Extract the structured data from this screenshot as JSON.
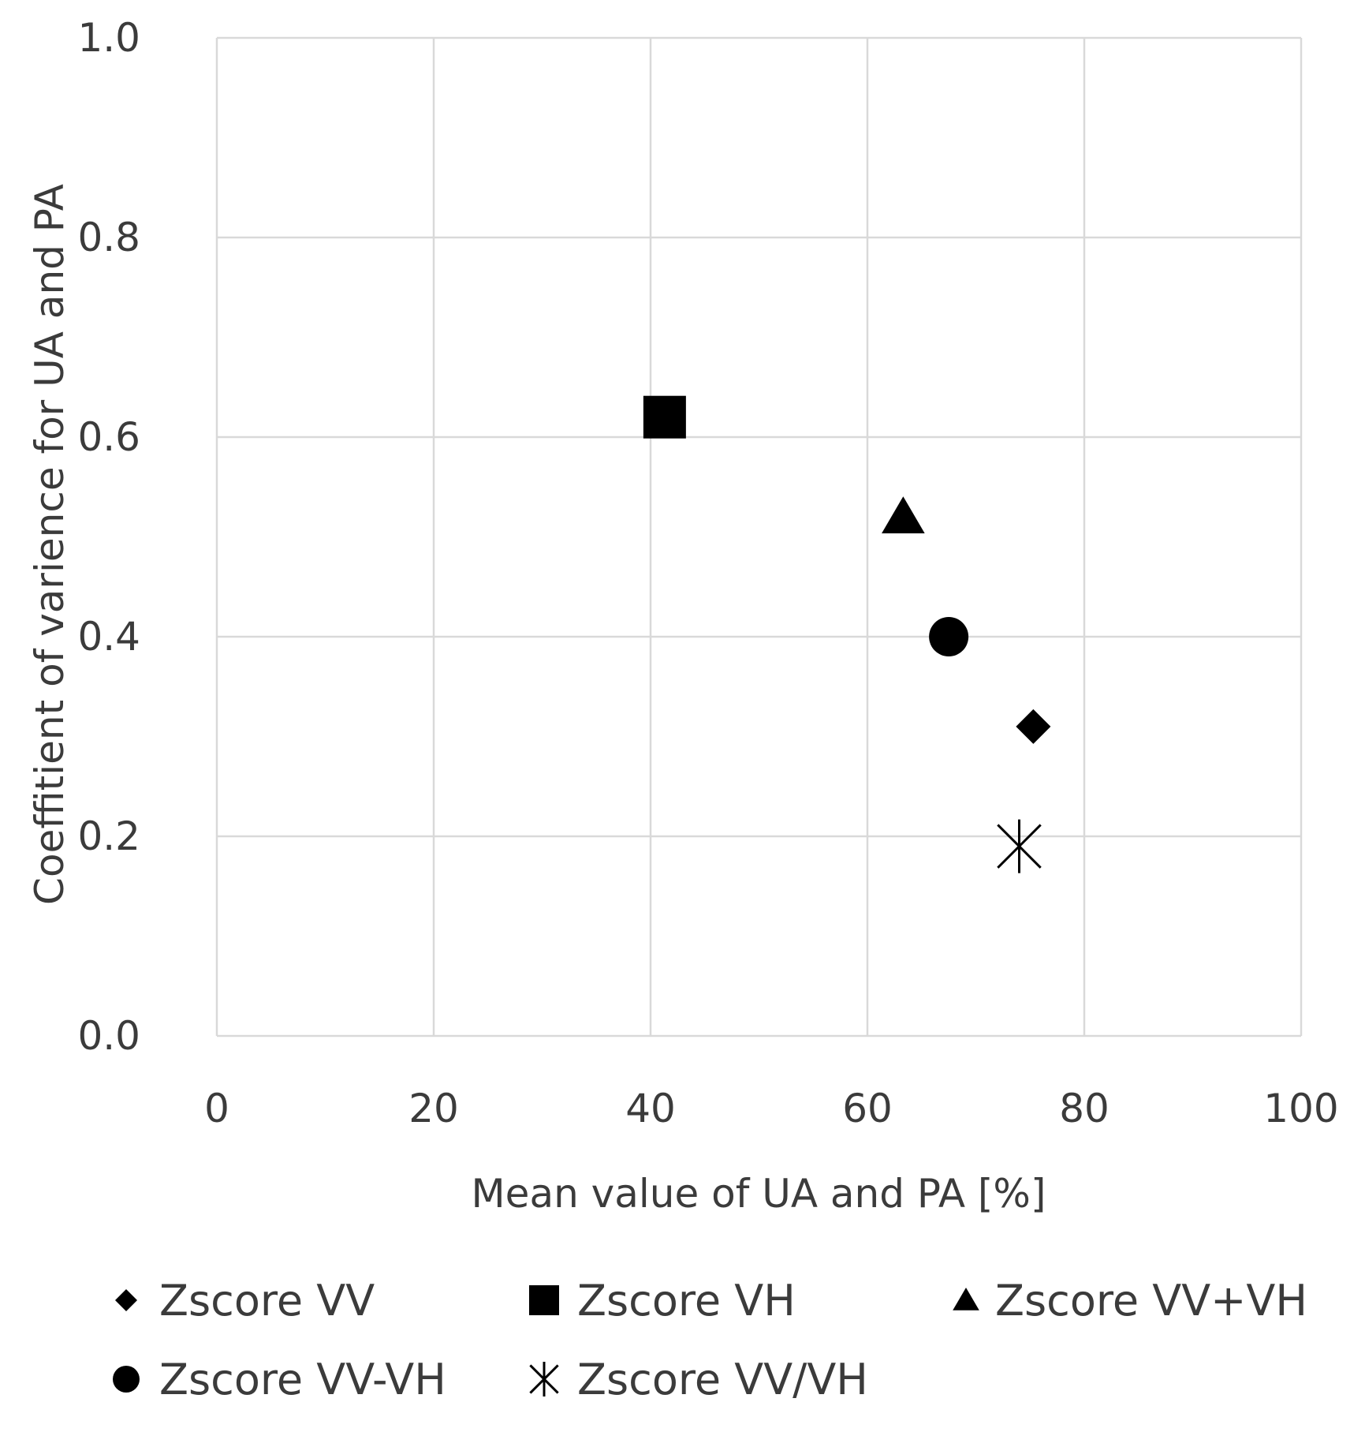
{
  "chart_data": {
    "type": "scatter",
    "title": "",
    "xlabel": "Mean value of UA and PA [%]",
    "ylabel": "Coeffitient of varience for UA and PA",
    "xlim": [
      0,
      100
    ],
    "ylim": [
      0.0,
      1.0
    ],
    "x_ticks": [
      0,
      20,
      40,
      60,
      80,
      100
    ],
    "x_tick_labels": [
      "0",
      "20",
      "40",
      "60",
      "80",
      "100"
    ],
    "y_ticks": [
      0.0,
      0.2,
      0.4,
      0.6,
      0.8,
      1.0
    ],
    "y_tick_labels": [
      "0.0",
      "0.2",
      "0.4",
      "0.6",
      "0.8",
      "1.0"
    ],
    "grid": true,
    "legend_position": "bottom",
    "series": [
      {
        "name": "Zscore VV",
        "marker": "diamond",
        "x": 75.3,
        "y": 0.31
      },
      {
        "name": "Zscore VH",
        "marker": "square",
        "x": 41.3,
        "y": 0.62
      },
      {
        "name": "Zscore VV+VH",
        "marker": "triangle",
        "x": 63.3,
        "y": 0.52
      },
      {
        "name": "Zscore VV-VH",
        "marker": "circle",
        "x": 67.5,
        "y": 0.4
      },
      {
        "name": "Zscore VV/VH",
        "marker": "asterisk",
        "x": 74.0,
        "y": 0.19
      }
    ],
    "colors": {
      "marker": "#000000",
      "grid": "#d9d9d9",
      "text": "#3b3b3b"
    }
  }
}
